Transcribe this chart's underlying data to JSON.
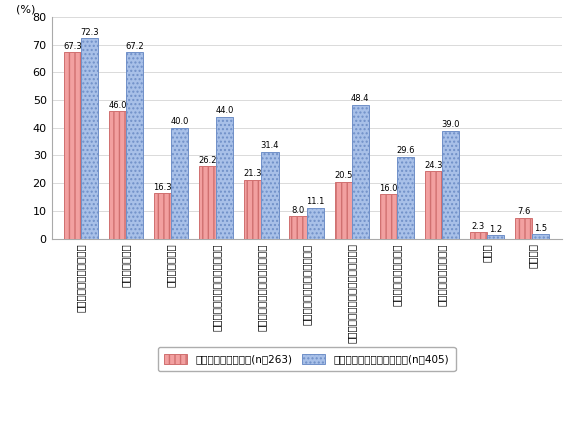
{
  "categories": [
    "情報セキュリティの確保",
    "適正な労務管理",
    "適正な人事評価",
    "社員同士のコミュニケーション",
    "テレワークの導入・運用コスト",
    "経営層のテレワークへの理解",
    "テレワークに対応した社内制度作り",
    "導入による効果の把握",
    "労働法規等との整合性",
    "その他",
    "特になし"
  ],
  "series1_values": [
    67.3,
    46.0,
    16.3,
    26.2,
    21.3,
    8.0,
    20.5,
    16.0,
    24.3,
    2.3,
    7.6
  ],
  "series2_values": [
    72.3,
    67.2,
    40.0,
    44.0,
    31.4,
    11.1,
    48.4,
    29.6,
    39.0,
    1.2,
    1.5
  ],
  "series1_label": "テレワーク導入済み(n＝263)",
  "series2_label": "検討している・関心がある(n＝405)",
  "series1_color": "#f2a0a0",
  "series1_edge": "#d07070",
  "series2_color": "#a8c0e8",
  "series2_edge": "#7090c8",
  "ylabel": "(%)",
  "ylim": [
    0,
    80
  ],
  "yticks": [
    0,
    10,
    20,
    30,
    40,
    50,
    60,
    70,
    80
  ],
  "bar_width": 0.38,
  "value_fontsize": 6.0,
  "tick_fontsize": 8.0,
  "label_fontsize": 7.5
}
